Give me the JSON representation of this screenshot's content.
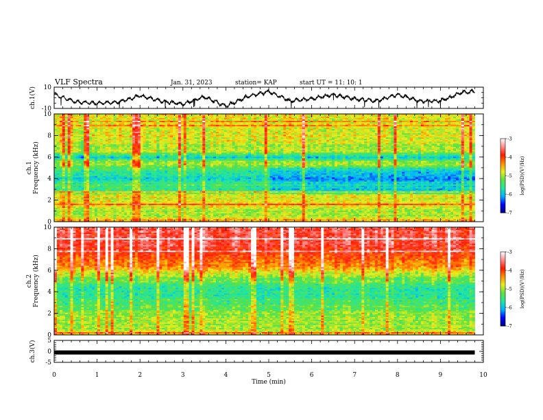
{
  "header": {
    "title": "VLF Spectra",
    "date": "Jan. 31, 2023",
    "station": "station= KAP",
    "start": "start UT =  11: 10: 1"
  },
  "panels": {
    "ch1_wave": {
      "label": "ch.1(V)",
      "ticks": [
        "10",
        "-10"
      ]
    },
    "ch1_spec": {
      "label_a": "ch.1",
      "label_b": "Frequency (kHz)",
      "ticks": [
        "10",
        "8",
        "6",
        "4",
        "2",
        "0"
      ]
    },
    "ch2_spec": {
      "label_a": "ch.2",
      "label_b": "Frequency (kHz)",
      "ticks": [
        "10",
        "8",
        "6",
        "4",
        "2",
        "0"
      ]
    },
    "ch3_wave": {
      "label": "ch.3(V)",
      "ticks": [
        "5",
        "0",
        "-5"
      ]
    }
  },
  "x_axis": {
    "label": "Time (min)",
    "ticks": [
      "0",
      "1",
      "2",
      "3",
      "4",
      "5",
      "6",
      "7",
      "8",
      "9",
      "10"
    ]
  },
  "colorbars": [
    {
      "label": "log(PSD)(V²/Hz)",
      "ticks": [
        "-3",
        "-4",
        "-5",
        "-6",
        "-7"
      ]
    },
    {
      "label": "log(PSD)(V²/Hz)",
      "ticks": [
        "-3",
        "-4",
        "-5",
        "-6",
        "-7"
      ]
    }
  ],
  "colors": {
    "scale": [
      "#000080",
      "#0000ff",
      "#00b4ff",
      "#20e6a0",
      "#60e040",
      "#e8ee20",
      "#ff8c00",
      "#ff1800",
      "#ff8c8c",
      "#ffffff"
    ],
    "trace": "#000000"
  },
  "chart_data": [
    {
      "type": "line",
      "title": "VLF Spectra",
      "ylabel": "ch.1(V)",
      "xlabel": "Time (min)",
      "xlim": [
        0,
        10
      ],
      "ylim": [
        -10,
        10
      ],
      "x": [
        0,
        0.5,
        1,
        1.5,
        2,
        2.5,
        3,
        3.5,
        4,
        4.5,
        5,
        5.5,
        6,
        6.5,
        7,
        7.5,
        8,
        8.5,
        9,
        9.5,
        9.8
      ],
      "series": [
        {
          "values": [
            3,
            -4,
            -5,
            -4,
            2,
            -3,
            -6,
            1,
            -8,
            1,
            6,
            -3,
            -1,
            3,
            -1,
            -3,
            3,
            -3,
            -3,
            5,
            6
          ]
        }
      ]
    },
    {
      "type": "heatmap",
      "ylabel": "Frequency (kHz)",
      "xlabel": "Time (min)",
      "xlim": [
        0,
        10
      ],
      "ylim": [
        0,
        10
      ],
      "data_end_min": 9.8,
      "value_range": [
        -7,
        -3
      ],
      "colorbar_label": "log(PSD)(V²/Hz)",
      "freq_profile_khz": [
        0.0,
        0.5,
        1.0,
        1.5,
        2.0,
        2.5,
        3.0,
        3.5,
        4.0,
        4.5,
        5.0,
        5.5,
        6.0,
        6.5,
        7.0,
        8.0,
        9.0,
        10.0
      ],
      "freq_profile_logpsd": [
        -4.4,
        -5.0,
        -5.0,
        -4.6,
        -4.9,
        -4.8,
        -5.6,
        -5.4,
        -5.9,
        -5.6,
        -5.3,
        -5.0,
        -5.9,
        -4.9,
        -5.0,
        -4.8,
        -4.8,
        -4.7
      ],
      "weak_region_after_min": 5.0
    },
    {
      "type": "heatmap",
      "ylabel": "Frequency (kHz)",
      "xlabel": "Time (min)",
      "xlim": [
        0,
        10
      ],
      "ylim": [
        0,
        10
      ],
      "data_end_min": 9.8,
      "value_range": [
        -7,
        -3
      ],
      "colorbar_label": "log(PSD)(V²/Hz)",
      "freq_profile_khz": [
        0.0,
        0.5,
        1.0,
        1.5,
        2.0,
        2.5,
        3.0,
        3.5,
        4.0,
        4.5,
        5.0,
        5.5,
        6.0,
        6.5,
        7.0,
        8.0,
        9.0,
        10.0
      ],
      "freq_profile_logpsd": [
        -4.6,
        -5.0,
        -5.0,
        -5.0,
        -5.1,
        -5.3,
        -5.4,
        -5.6,
        -5.6,
        -5.5,
        -5.3,
        -5.0,
        -4.6,
        -4.3,
        -4.1,
        -3.8,
        -3.7,
        -3.6
      ]
    },
    {
      "type": "line",
      "ylabel": "ch.3(V)",
      "xlabel": "Time (min)",
      "xlim": [
        0,
        10
      ],
      "ylim": [
        -5,
        5
      ],
      "x": [
        0,
        9.8
      ],
      "series": [
        {
          "values": [
            -0.5,
            -0.5
          ]
        }
      ]
    }
  ]
}
